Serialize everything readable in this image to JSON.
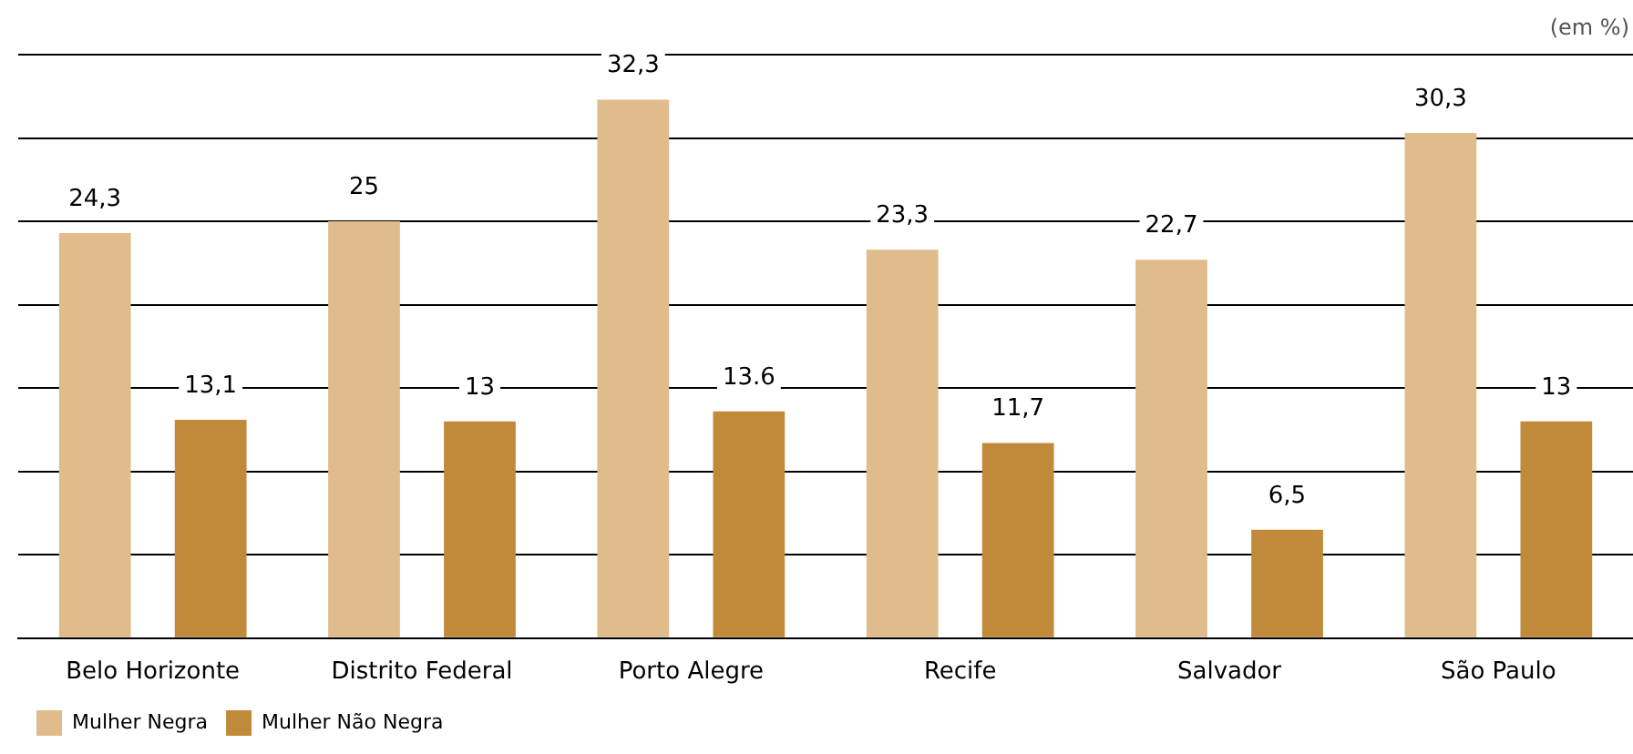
{
  "chart_data": {
    "type": "bar",
    "categories": [
      "Belo Horizonte",
      "Distrito Federal",
      "Porto Alegre",
      "Recife",
      "Salvador",
      "São Paulo"
    ],
    "series": [
      {
        "name": "Mulher Negra",
        "color": "#e0bb8c",
        "values": [
          24.3,
          25,
          32.3,
          23.3,
          22.7,
          30.3
        ],
        "value_labels": [
          "24,3",
          "25",
          "32,3",
          "23,3",
          "22,7",
          "30,3"
        ]
      },
      {
        "name": "Mulher Não Negra",
        "color": "#c08a3a",
        "values": [
          13.1,
          13,
          13.6,
          11.7,
          6.5,
          13
        ],
        "value_labels": [
          "13,1",
          "13",
          "13.6",
          "11,7",
          "6,5",
          "13"
        ]
      }
    ],
    "ylim": [
      0,
      35
    ],
    "yticks": [
      {
        "value": 0,
        "label": null
      },
      {
        "value": 5,
        "label": null
      },
      {
        "value": 10,
        "label": null
      },
      {
        "value": 15,
        "label": null
      },
      {
        "value": 20,
        "label": null
      },
      {
        "value": 25,
        "label": null
      },
      {
        "value": 30,
        "label": null
      },
      {
        "value": 35,
        "label": null
      }
    ],
    "tick_labels": "x",
    "grid": "y",
    "legend": "bottom left",
    "annotations": [
      "(em %)"
    ]
  }
}
